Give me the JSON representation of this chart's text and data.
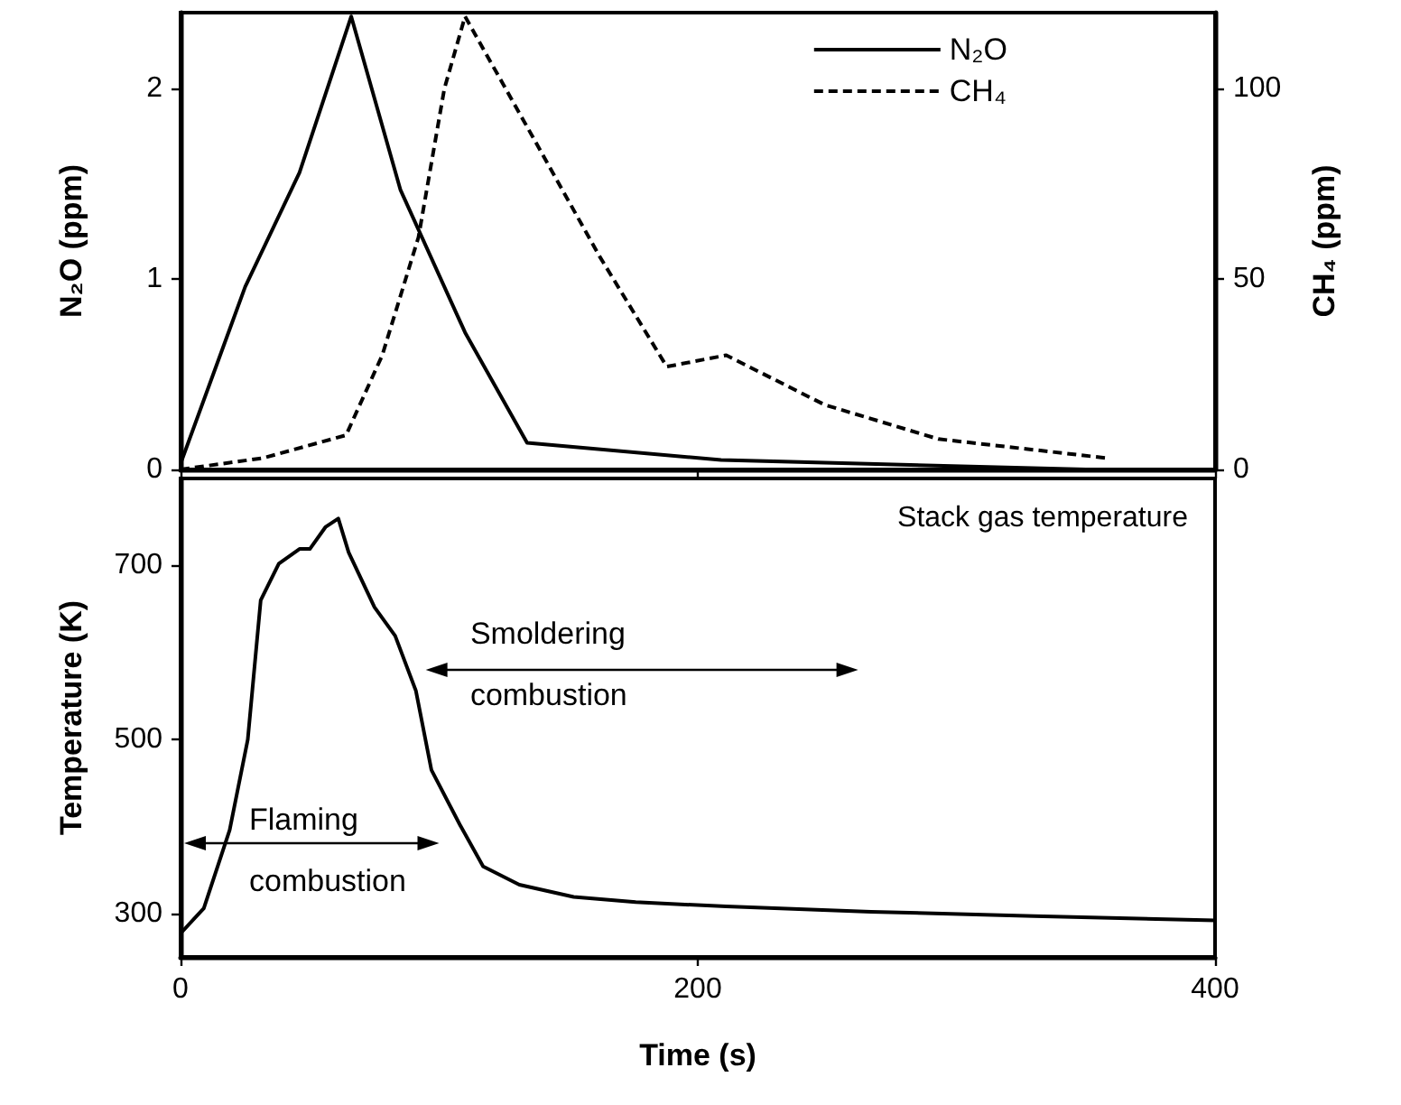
{
  "chart_data": [
    {
      "type": "line",
      "ylabel": "N₂O (ppm)",
      "y2label": "CH₄ (ppm)",
      "xlim": [
        0,
        400
      ],
      "xticks": [
        0,
        200,
        400
      ],
      "ylim": [
        0,
        2.4
      ],
      "yticks": [
        0,
        1,
        2
      ],
      "y2lim": [
        0,
        120
      ],
      "y2ticks": [
        0,
        50,
        100
      ],
      "tick_labels": "y",
      "legend": "top right",
      "grid": false,
      "marker": "none",
      "series": [
        {
          "name": "N₂O",
          "color": "#000000",
          "line_style": "solid",
          "x": [
            0,
            25,
            46,
            66,
            85,
            110,
            134,
            209,
            350,
            400
          ],
          "values": [
            0.03,
            0.96,
            1.56,
            2.38,
            1.47,
            0.72,
            0.14,
            0.05,
            0.0,
            0.0
          ]
        },
        {
          "name": "CH₄",
          "color": "#000000",
          "line_style": "dashed",
          "axis": "y2",
          "x": [
            0,
            32,
            64,
            78,
            92,
            102,
            110,
            134,
            162,
            188,
            211,
            249,
            293,
            358
          ],
          "values": [
            0,
            3,
            9,
            30,
            61,
            100,
            119,
            90,
            56,
            27,
            30,
            17,
            8,
            3
          ]
        }
      ]
    },
    {
      "type": "line",
      "title": "Stack gas temperature",
      "xlabel": "Time (s)",
      "ylabel": "Temperature (K)",
      "xlim": [
        0,
        400
      ],
      "xticks": [
        0,
        200,
        400
      ],
      "ylim": [
        250,
        800
      ],
      "yticks": [
        300,
        500,
        700
      ],
      "grid": false,
      "marker": "none",
      "legend": false,
      "annotations": [
        "Flaming combustion",
        "Smoldering combustion"
      ],
      "series": [
        {
          "color": "#000000",
          "x": [
            0,
            9,
            19,
            26,
            31,
            38,
            46,
            50,
            56,
            61,
            65,
            75,
            83,
            91,
            97,
            108,
            117,
            131,
            152,
            176,
            211,
            267,
            330,
            400
          ],
          "values": [
            277,
            306,
            396,
            500,
            660,
            702,
            719,
            719,
            744,
            754,
            715,
            652,
            619,
            556,
            465,
            402,
            354,
            333,
            319,
            313,
            308,
            302,
            297,
            292
          ]
        }
      ]
    }
  ]
}
